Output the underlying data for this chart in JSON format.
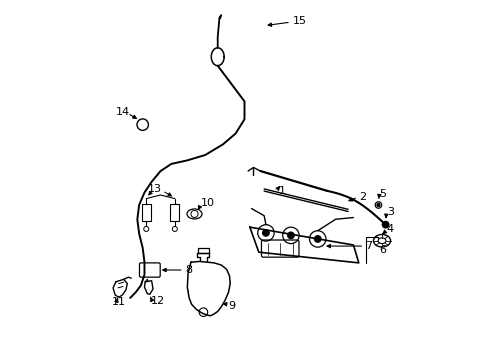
{
  "bg_color": "#ffffff",
  "line_color": "#000000",
  "label_color": "#000000",
  "figsize": [
    4.89,
    3.6
  ],
  "dpi": 100
}
